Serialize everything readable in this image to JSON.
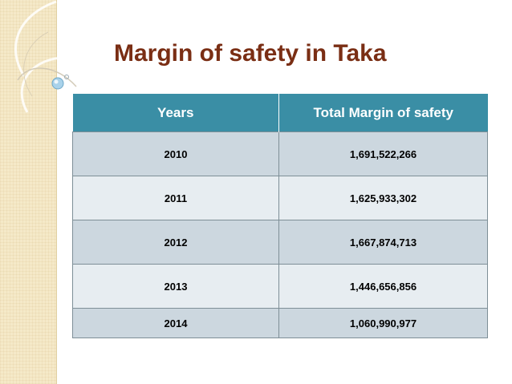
{
  "slide": {
    "title": "Margin of safety in Taka"
  },
  "table": {
    "headers": {
      "years": "Years",
      "total": "Total Margin of safety"
    },
    "rows": [
      {
        "year": "2010",
        "value": "1,691,522,266"
      },
      {
        "year": "2011",
        "value": "1,625,933,302"
      },
      {
        "year": "2012",
        "value": "1,667,874,713"
      },
      {
        "year": "2013",
        "value": "1,446,656,856"
      },
      {
        "year": "2014",
        "value": "1,060,990,977"
      }
    ]
  },
  "colors": {
    "title": "#7a2e14",
    "header_bg": "#3a8ea5",
    "row_dark": "#ccd7df",
    "row_light": "#e7edf1",
    "side_strip": "#f5e9c8"
  }
}
